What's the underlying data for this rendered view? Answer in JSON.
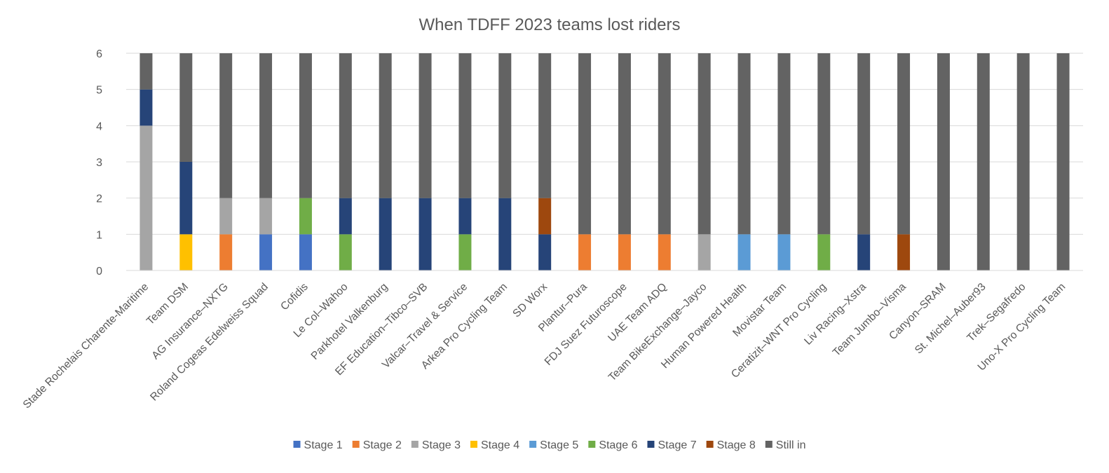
{
  "chart_data": {
    "type": "bar",
    "stacked": true,
    "title": "When TDFF 2023 teams lost riders",
    "xlabel": "",
    "ylabel": "",
    "ylim": [
      0,
      6
    ],
    "yticks": [
      0,
      1,
      2,
      3,
      4,
      5,
      6
    ],
    "grid": true,
    "legend_position": "bottom",
    "categories": [
      "Stade Rochelais Charente-Maritime",
      "Team DSM",
      "AG Insurance–NXTG",
      "Roland Cogeas Edelweiss Squad",
      "Cofidis",
      "Le Col–Wahoo",
      "Parkhotel Valkenburg",
      "EF Education–Tibco–SVB",
      "Valcar–Travel & Service",
      "Arkea Pro Cycling Team",
      "SD Worx",
      "Plantur–Pura",
      "FDJ Suez Futuroscope",
      "UAE Team ADQ",
      "Team BikeExchange–Jayco",
      "Human Powered Health",
      "Movistar Team",
      "Ceratizit–WNT Pro Cycling",
      "Liv Racing–Xstra",
      "Team Jumbo–Visma",
      "Canyon–SRAM",
      "St. Michel–Auber93",
      "Trek–Segafredo",
      "Uno-X Pro Cycling Team"
    ],
    "series": [
      {
        "name": "Stage 1",
        "color": "#4472C4",
        "values": [
          0,
          0,
          0,
          1,
          1,
          0,
          0,
          0,
          0,
          0,
          0,
          0,
          0,
          0,
          0,
          0,
          0,
          0,
          0,
          0,
          0,
          0,
          0,
          0
        ]
      },
      {
        "name": "Stage 2",
        "color": "#ED7D31",
        "values": [
          0,
          0,
          1,
          0,
          0,
          0,
          0,
          0,
          0,
          0,
          0,
          1,
          1,
          1,
          0,
          0,
          0,
          0,
          0,
          0,
          0,
          0,
          0,
          0
        ]
      },
      {
        "name": "Stage 3",
        "color": "#A5A5A5",
        "values": [
          4,
          0,
          1,
          1,
          0,
          0,
          0,
          0,
          0,
          0,
          0,
          0,
          0,
          0,
          1,
          0,
          0,
          0,
          0,
          0,
          0,
          0,
          0,
          0
        ]
      },
      {
        "name": "Stage 4",
        "color": "#FFC000",
        "values": [
          0,
          1,
          0,
          0,
          0,
          0,
          0,
          0,
          0,
          0,
          0,
          0,
          0,
          0,
          0,
          0,
          0,
          0,
          0,
          0,
          0,
          0,
          0,
          0
        ]
      },
      {
        "name": "Stage 5",
        "color": "#5B9BD5",
        "values": [
          0,
          0,
          0,
          0,
          0,
          0,
          0,
          0,
          0,
          0,
          0,
          0,
          0,
          0,
          0,
          1,
          1,
          0,
          0,
          0,
          0,
          0,
          0,
          0
        ]
      },
      {
        "name": "Stage 6",
        "color": "#70AD47",
        "values": [
          0,
          0,
          0,
          0,
          1,
          1,
          0,
          0,
          1,
          0,
          0,
          0,
          0,
          0,
          0,
          0,
          0,
          1,
          0,
          0,
          0,
          0,
          0,
          0
        ]
      },
      {
        "name": "Stage 7",
        "color": "#264478",
        "values": [
          1,
          2,
          0,
          0,
          0,
          1,
          2,
          2,
          1,
          2,
          1,
          0,
          0,
          0,
          0,
          0,
          0,
          0,
          1,
          0,
          0,
          0,
          0,
          0
        ]
      },
      {
        "name": "Stage 8",
        "color": "#9E480E",
        "values": [
          0,
          0,
          0,
          0,
          0,
          0,
          0,
          0,
          0,
          0,
          1,
          0,
          0,
          0,
          0,
          0,
          0,
          0,
          0,
          1,
          0,
          0,
          0,
          0
        ]
      },
      {
        "name": "Still in",
        "color": "#636363",
        "values": [
          1,
          3,
          4,
          4,
          4,
          4,
          4,
          4,
          4,
          4,
          4,
          5,
          5,
          5,
          5,
          5,
          5,
          5,
          5,
          5,
          6,
          6,
          6,
          6
        ]
      }
    ]
  }
}
